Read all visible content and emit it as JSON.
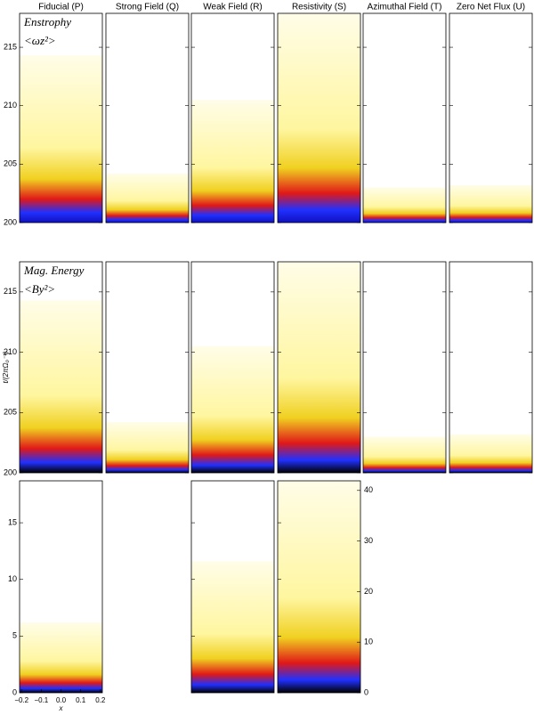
{
  "chart_data": [
    {
      "type": "heatmap",
      "categories": [
        "Fiducial (P)",
        "Strong Field (Q)",
        "Weak Field (R)",
        "Resistivity (S)",
        "Azimuthal Field (T)",
        "Zero Net Flux (U)"
      ],
      "annotations": [
        "Enstrophy",
        "<ωz²>"
      ],
      "values": [
        214.3,
        204.2,
        210.5,
        217.9,
        203.0,
        203.2
      ],
      "ylim": [
        200,
        217.9
      ],
      "yticks": [
        200,
        205,
        210,
        215
      ],
      "colormap": [
        "#1010c0",
        "#2030ff",
        "#e01818",
        "#f0d020",
        "#fff6a0",
        "#fffde8"
      ]
    },
    {
      "type": "heatmap",
      "annotations": [
        "Mag. Energy",
        "<By²>"
      ],
      "ylabel": "t/(2πΩ₀⁻¹)",
      "values": [
        214.3,
        204.2,
        210.5,
        217.5,
        203.0,
        203.2
      ],
      "ylim": [
        200,
        217.5
      ],
      "yticks": [
        200,
        205,
        210,
        215
      ],
      "colormap": [
        "#000000",
        "#2030ff",
        "#e01818",
        "#f0d020",
        "#fff6a0",
        "#fffde8"
      ]
    },
    {
      "type": "heatmap",
      "series": [
        {
          "values": [
            6.2,
            null,
            11.6,
            null,
            null,
            null
          ]
        },
        {
          "axis": "y2",
          "values": [
            null,
            null,
            null,
            41.9,
            null,
            null
          ]
        }
      ],
      "ylim": [
        0,
        18.7
      ],
      "yticks": [
        0,
        5,
        10,
        15
      ],
      "y2lim": [
        0,
        41.9
      ],
      "y2ticks": [
        0,
        10,
        20,
        30,
        40
      ],
      "xlim": [
        -0.21,
        0.21
      ],
      "xticks": [
        {
          "value": -0.2,
          "label": "−0.2"
        },
        {
          "value": -0.1,
          "label": "−0.1"
        },
        {
          "value": 0,
          "label": "0.0"
        },
        0.1,
        0.2
      ],
      "xlabel": "x",
      "colormap": [
        "#000000",
        "#2030ff",
        "#e01818",
        "#f0d020",
        "#fff6a0",
        "#fffde8"
      ]
    }
  ]
}
